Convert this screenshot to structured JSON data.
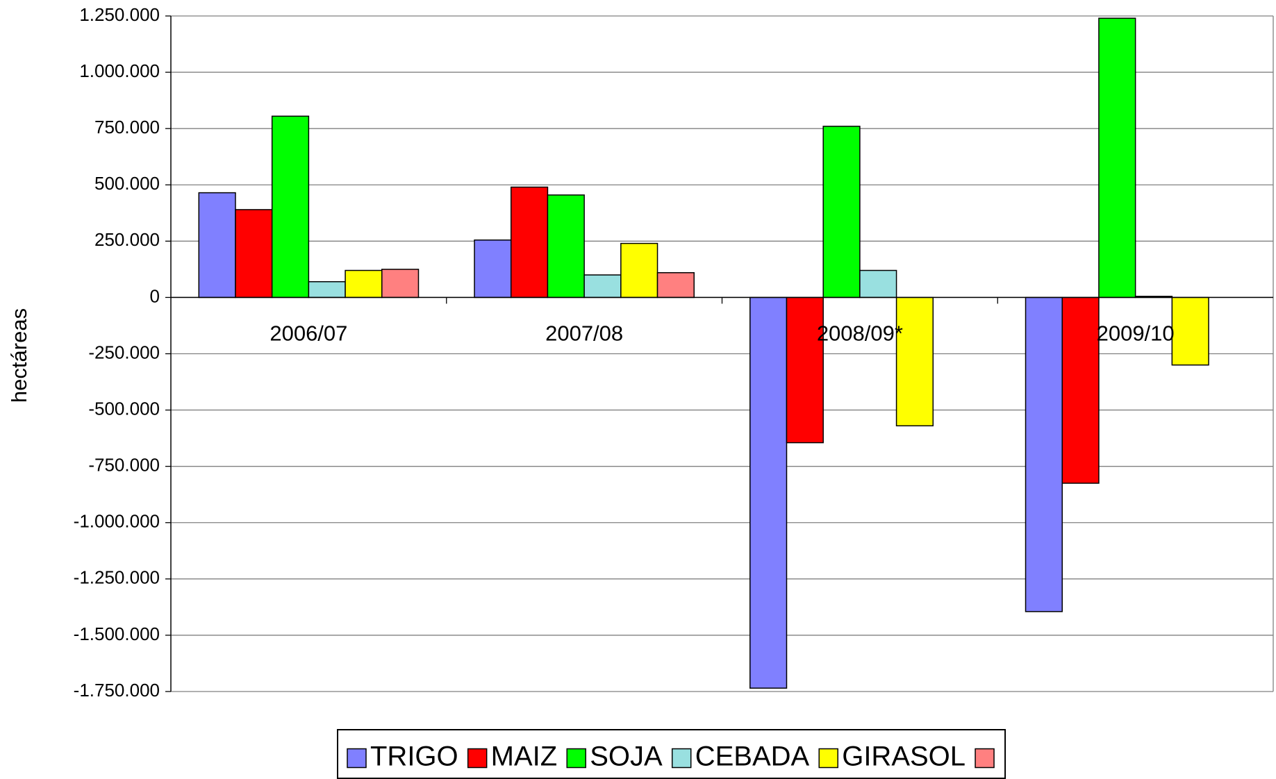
{
  "chart_data": {
    "type": "bar",
    "y_label": "hectáreas",
    "categories": [
      "2006/07",
      "2007/08",
      "2008/09*",
      "2009/10"
    ],
    "series": [
      {
        "name": "TRIGO",
        "color": "#8080ff",
        "values": [
          465000,
          255000,
          -1735000,
          -1395000
        ]
      },
      {
        "name": "MAIZ",
        "color": "#ff0000",
        "values": [
          390000,
          490000,
          -645000,
          -825000
        ]
      },
      {
        "name": "SOJA",
        "color": "#00ff00",
        "values": [
          805000,
          455000,
          760000,
          1240000
        ]
      },
      {
        "name": "CEBADA",
        "color": "#99e0e0",
        "values": [
          70000,
          100000,
          120000,
          5000
        ]
      },
      {
        "name": "GIRASOL",
        "color": "#ffff00",
        "values": [
          120000,
          240000,
          -570000,
          -300000
        ]
      },
      {
        "name": null,
        "color": "#ff8080",
        "values": [
          125000,
          110000,
          null,
          null
        ]
      }
    ],
    "ylim": [
      -1750000,
      1250000
    ],
    "yticks": [
      {
        "value": -1750000,
        "label": "-1.750.000"
      },
      {
        "value": -1500000,
        "label": "-1.500.000"
      },
      {
        "value": -1250000,
        "label": "-1.250.000"
      },
      {
        "value": -1000000,
        "label": "-1.000.000"
      },
      {
        "value": -750000,
        "label": "-750.000"
      },
      {
        "value": -500000,
        "label": "-500.000"
      },
      {
        "value": -250000,
        "label": "-250.000"
      },
      0,
      {
        "value": 250000,
        "label": "250.000"
      },
      {
        "value": 500000,
        "label": "500.000"
      },
      {
        "value": 750000,
        "label": "750.000"
      },
      {
        "value": 1000000,
        "label": "1.000.000"
      },
      {
        "value": 1250000,
        "label": "1.250.000"
      }
    ],
    "grid": true
  }
}
